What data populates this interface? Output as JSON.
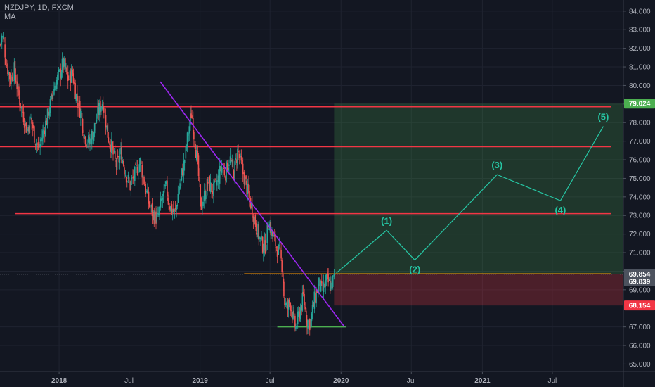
{
  "header": {
    "symbol_line": "NZDJPY, 1D, FXCM",
    "indicator": "MA"
  },
  "chart_data": {
    "type": "candlestick",
    "symbol": "NZDJPY",
    "timeframe": "1D",
    "source": "FXCM",
    "xlim": [
      "2017-08-01",
      "2022-01-01"
    ],
    "ylim": [
      64.6,
      84.6
    ],
    "x_ticks": [
      {
        "label": "2018",
        "date": "2018-01-01"
      },
      {
        "label": "Jul",
        "date": "2018-07-01"
      },
      {
        "label": "2019",
        "date": "2019-01-01"
      },
      {
        "label": "Jul",
        "date": "2019-07-01"
      },
      {
        "label": "2020",
        "date": "2020-01-01"
      },
      {
        "label": "Jul",
        "date": "2020-07-01"
      },
      {
        "label": "2021",
        "date": "2021-01-01"
      },
      {
        "label": "Jul",
        "date": "2021-07-01"
      }
    ],
    "y_ticks": [
      {
        "label": "65.000",
        "value": 65
      },
      {
        "label": "66.000",
        "value": 66
      },
      {
        "label": "67.000",
        "value": 67
      },
      {
        "label": "69.000",
        "value": 69
      },
      {
        "label": "70.000",
        "value": 70
      },
      {
        "label": "71.000",
        "value": 71
      },
      {
        "label": "72.000",
        "value": 72
      },
      {
        "label": "73.000",
        "value": 73
      },
      {
        "label": "74.000",
        "value": 74
      },
      {
        "label": "75.000",
        "value": 75
      },
      {
        "label": "76.000",
        "value": 76
      },
      {
        "label": "77.000",
        "value": 77
      },
      {
        "label": "78.000",
        "value": 78
      },
      {
        "label": "79.000",
        "value": 79
      },
      {
        "label": "80.000",
        "value": 80
      },
      {
        "label": "81.000",
        "value": 81
      },
      {
        "label": "82.000",
        "value": 82
      },
      {
        "label": "83.000",
        "value": 83
      },
      {
        "label": "84.000",
        "value": 84
      }
    ],
    "price_path": [
      [
        "2017-08-02",
        82.2
      ],
      [
        "2017-08-08",
        82.7
      ],
      [
        "2017-08-18",
        81.2
      ],
      [
        "2017-08-28",
        80.3
      ],
      [
        "2017-09-08",
        80.9
      ],
      [
        "2017-09-18",
        79.5
      ],
      [
        "2017-09-28",
        78.6
      ],
      [
        "2017-10-10",
        77.6
      ],
      [
        "2017-10-20",
        78.2
      ],
      [
        "2017-11-01",
        77.1
      ],
      [
        "2017-11-10",
        76.6
      ],
      [
        "2017-11-20",
        77.4
      ],
      [
        "2017-12-01",
        78.2
      ],
      [
        "2017-12-12",
        79.2
      ],
      [
        "2017-12-22",
        80.1
      ],
      [
        "2018-01-03",
        80.6
      ],
      [
        "2018-01-12",
        81.2
      ],
      [
        "2018-01-25",
        80.3
      ],
      [
        "2018-02-05",
        80.7
      ],
      [
        "2018-02-15",
        79.4
      ],
      [
        "2018-02-26",
        78.6
      ],
      [
        "2018-03-08",
        77.3
      ],
      [
        "2018-03-20",
        76.9
      ],
      [
        "2018-04-02",
        77.6
      ],
      [
        "2018-04-13",
        78.6
      ],
      [
        "2018-04-25",
        79.2
      ],
      [
        "2018-05-07",
        77.4
      ],
      [
        "2018-05-18",
        76.6
      ],
      [
        "2018-05-30",
        75.6
      ],
      [
        "2018-06-11",
        76.4
      ],
      [
        "2018-06-22",
        75.3
      ],
      [
        "2018-07-04",
        74.6
      ],
      [
        "2018-07-16",
        75.2
      ],
      [
        "2018-07-30",
        75.9
      ],
      [
        "2018-08-10",
        74.8
      ],
      [
        "2018-08-22",
        73.6
      ],
      [
        "2018-09-03",
        73.0
      ],
      [
        "2018-09-14",
        72.8
      ],
      [
        "2018-09-25",
        73.9
      ],
      [
        "2018-10-05",
        74.5
      ],
      [
        "2018-10-17",
        73.4
      ],
      [
        "2018-10-29",
        73.1
      ],
      [
        "2018-11-09",
        74.6
      ],
      [
        "2018-11-21",
        75.8
      ],
      [
        "2018-12-03",
        77.6
      ],
      [
        "2018-12-10",
        78.6
      ],
      [
        "2018-12-17",
        77.3
      ],
      [
        "2018-12-27",
        75.6
      ],
      [
        "2019-01-03",
        73.4
      ],
      [
        "2019-01-10",
        73.9
      ],
      [
        "2019-01-22",
        74.8
      ],
      [
        "2019-02-04",
        74.3
      ],
      [
        "2019-02-15",
        74.8
      ],
      [
        "2019-02-26",
        75.6
      ],
      [
        "2019-03-08",
        75.3
      ],
      [
        "2019-03-19",
        76.1
      ],
      [
        "2019-03-29",
        75.2
      ],
      [
        "2019-04-09",
        76.5
      ],
      [
        "2019-04-19",
        75.6
      ],
      [
        "2019-05-02",
        74.5
      ],
      [
        "2019-05-14",
        73.5
      ],
      [
        "2019-05-27",
        72.4
      ],
      [
        "2019-06-07",
        71.6
      ],
      [
        "2019-06-18",
        71.2
      ],
      [
        "2019-06-28",
        72.8
      ],
      [
        "2019-07-05",
        72.1
      ],
      [
        "2019-07-15",
        71.5
      ],
      [
        "2019-07-25",
        71.0
      ],
      [
        "2019-08-02",
        70.3
      ],
      [
        "2019-08-07",
        68.5
      ],
      [
        "2019-08-14",
        67.9
      ],
      [
        "2019-08-22",
        68.4
      ],
      [
        "2019-08-30",
        67.5
      ],
      [
        "2019-09-06",
        66.9
      ],
      [
        "2019-09-16",
        67.8
      ],
      [
        "2019-09-26",
        68.6
      ],
      [
        "2019-10-04",
        67.4
      ],
      [
        "2019-10-14",
        67.2
      ],
      [
        "2019-10-25",
        68.5
      ],
      [
        "2019-11-05",
        69.3
      ],
      [
        "2019-11-14",
        68.9
      ],
      [
        "2019-11-25",
        69.5
      ],
      [
        "2019-12-06",
        69.2
      ],
      [
        "2019-12-16",
        69.7
      ]
    ],
    "horizontal_levels": [
      {
        "value": 78.85,
        "from": "2017-08-01",
        "to": "2021-12-01",
        "color": "#f23645"
      },
      {
        "value": 76.7,
        "from": "2017-08-01",
        "to": "2021-12-01",
        "color": "#f23645"
      },
      {
        "value": 73.1,
        "from": "2017-09-10",
        "to": "2021-12-01",
        "color": "#f23645"
      },
      {
        "value": 69.854,
        "from": "2019-04-25",
        "to": "2021-12-01",
        "color": "#ff9800"
      },
      {
        "value": 67.0,
        "from": "2019-07-20",
        "to": "2020-01-15",
        "color": "#4caf50"
      }
    ],
    "trendline": {
      "start": [
        "2018-09-20",
        80.2
      ],
      "end": [
        "2020-01-10",
        67.0
      ],
      "color": "#9c27f0"
    },
    "position": {
      "start": "2019-12-14",
      "end": "2022-01-01",
      "entry": 69.854,
      "target": 79.024,
      "stop": 68.154,
      "profit_color": "#4caf50",
      "loss_color": "#f23645"
    },
    "elliott_wave": {
      "color": "#26c6a4",
      "points": [
        {
          "label": "",
          "date": "2019-12-20",
          "value": 69.9
        },
        {
          "label": "(1)",
          "date": "2020-04-28",
          "value": 72.2
        },
        {
          "label": "(2)",
          "date": "2020-07-10",
          "value": 70.6
        },
        {
          "label": "(3)",
          "date": "2021-02-08",
          "value": 75.2
        },
        {
          "label": "(4)",
          "date": "2021-07-22",
          "value": 73.8
        },
        {
          "label": "(5)",
          "date": "2021-11-10",
          "value": 77.8
        }
      ]
    },
    "price_badges": [
      {
        "label": "79.024",
        "value": 79.024,
        "color": "#4caf50"
      },
      {
        "label": "69.854",
        "value": 69.854,
        "color": "#4c525e"
      },
      {
        "label": "69.839",
        "value": 69.45,
        "color": "#4c525e"
      },
      {
        "label": "68.154",
        "value": 68.154,
        "color": "#f23645"
      }
    ],
    "last_price_line": 69.839
  }
}
